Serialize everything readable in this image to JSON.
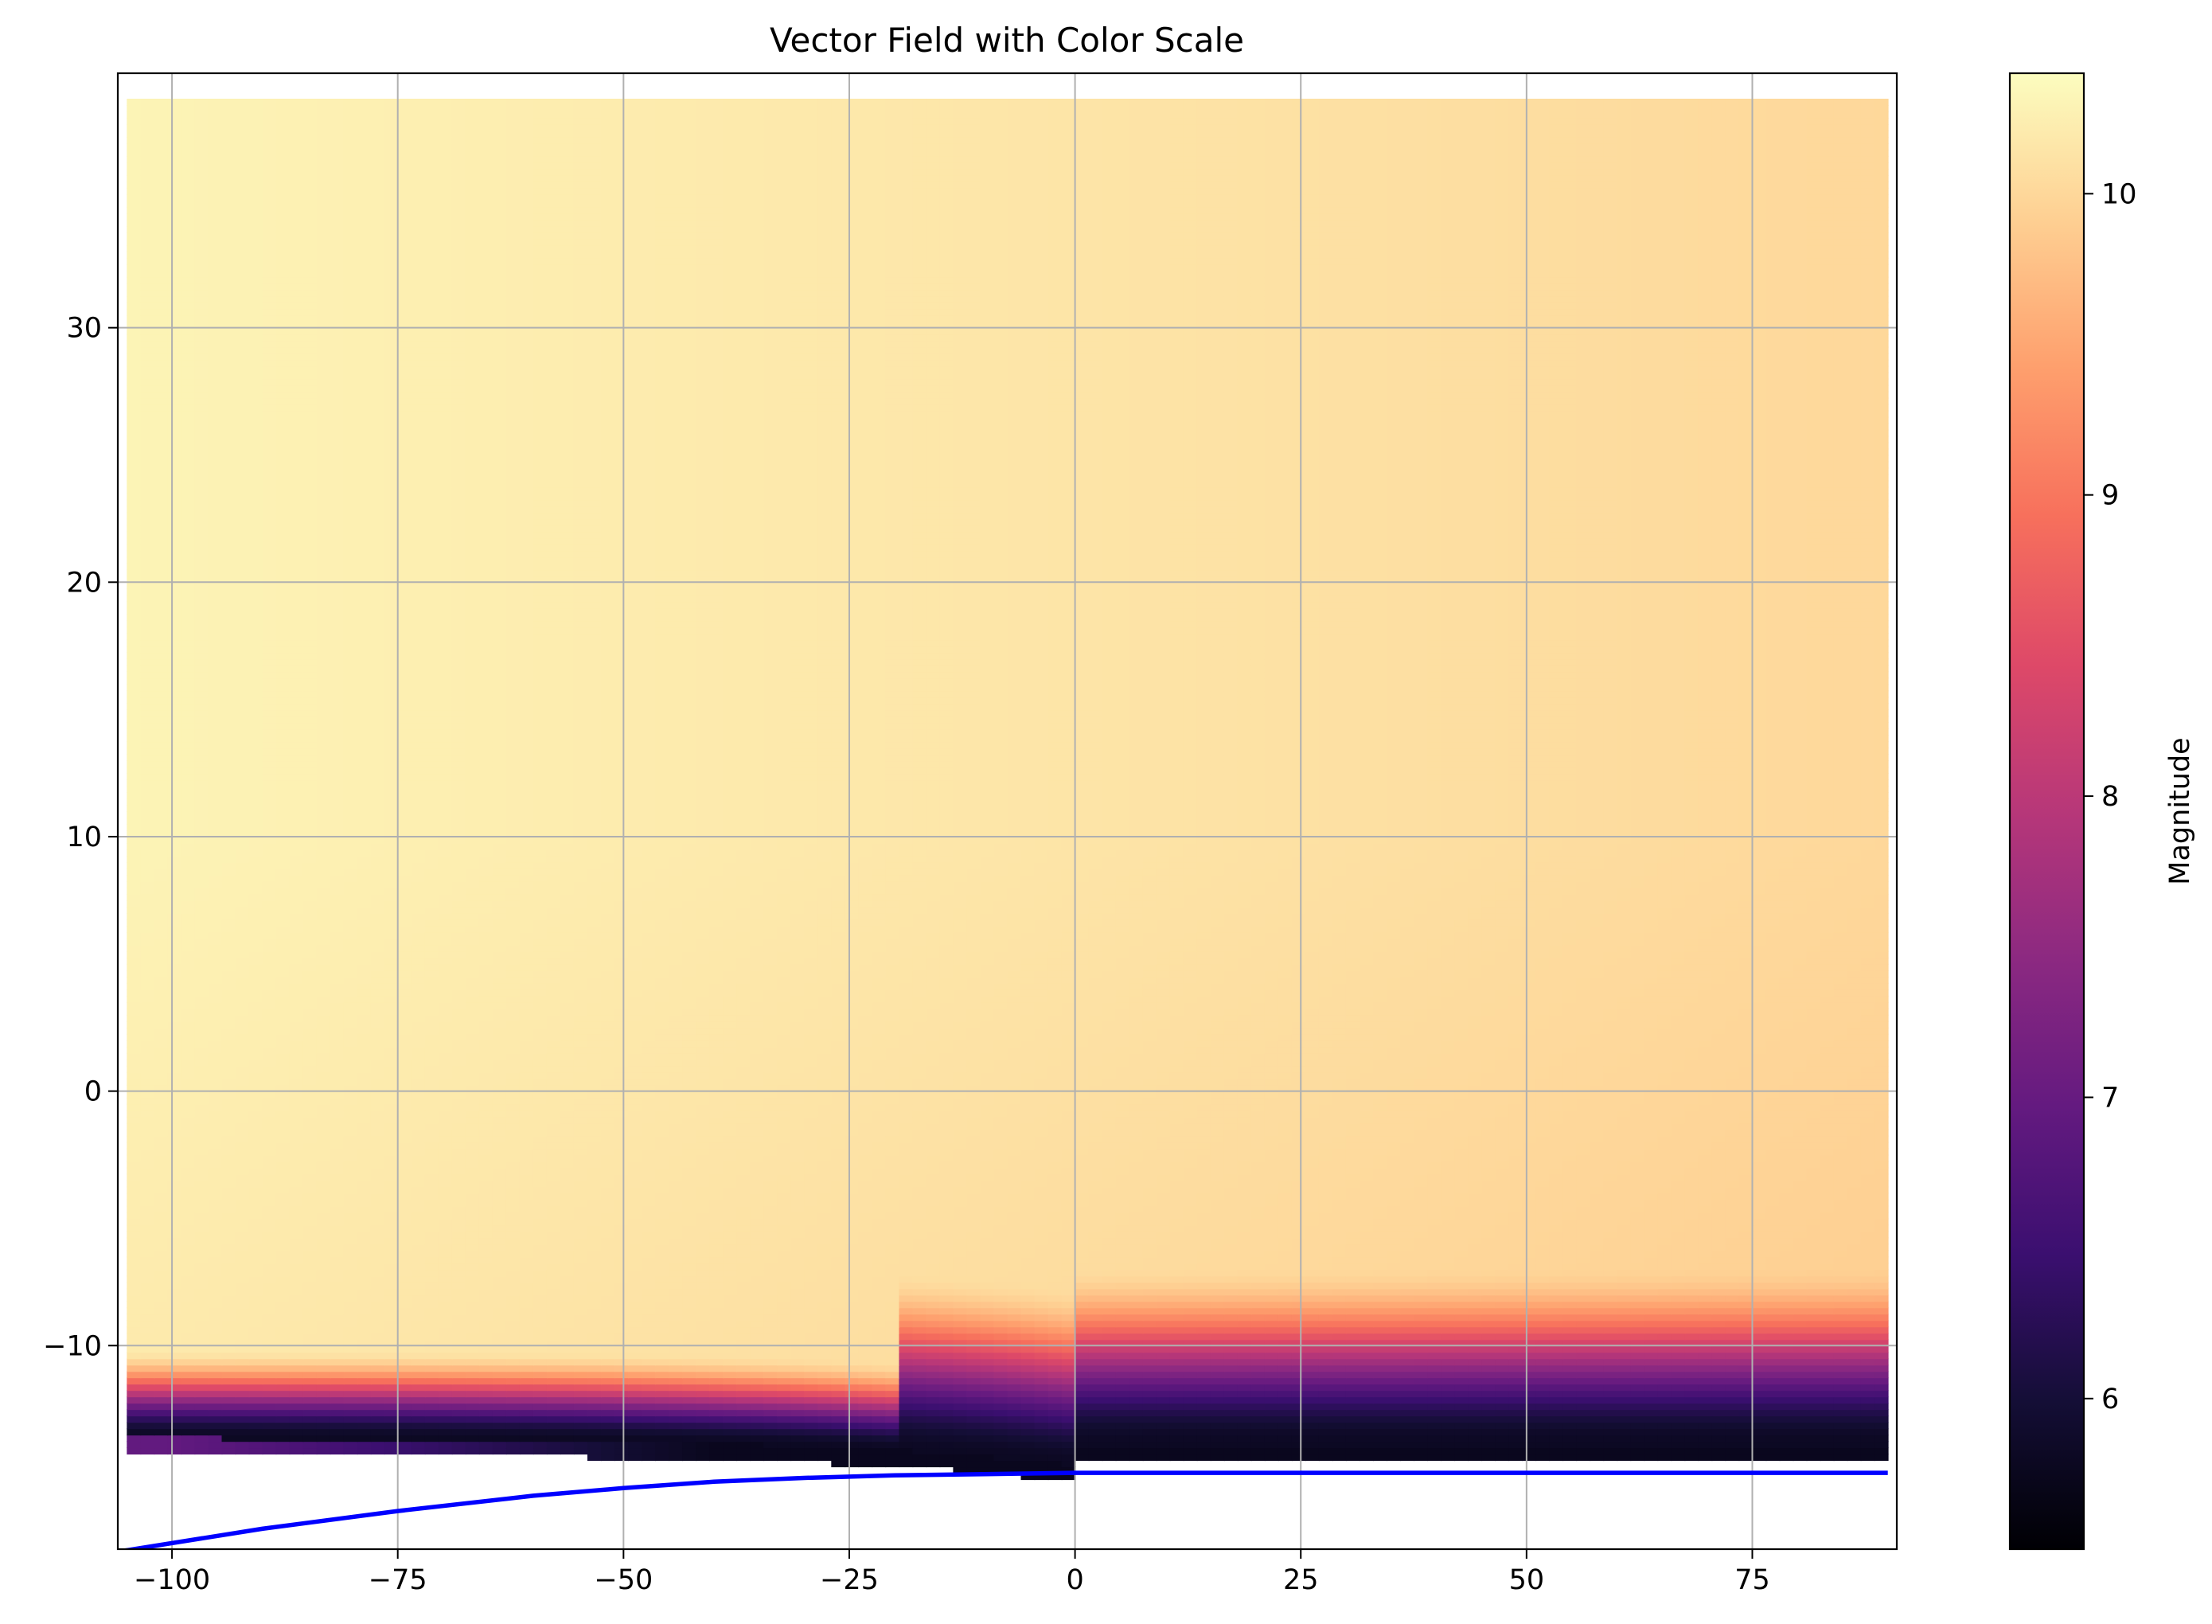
{
  "chart_data": {
    "type": "heatmap",
    "title": "Vector Field with Color Scale",
    "xlabel": "",
    "ylabel": "",
    "xlim": [
      -106,
      91
    ],
    "ylim": [
      -18,
      40
    ],
    "x_ticks": [
      -100,
      -75,
      -50,
      -25,
      0,
      25,
      50,
      75
    ],
    "x_tick_labels": [
      "−100",
      "−75",
      "−50",
      "−25",
      "0",
      "25",
      "50",
      "75"
    ],
    "y_ticks": [
      -10,
      0,
      10,
      20,
      30
    ],
    "y_tick_labels": [
      "−10",
      "0",
      "10",
      "20",
      "30"
    ],
    "grid": true,
    "colormap": "magma",
    "colorbar": {
      "label": "Magnitude",
      "range": [
        5.5,
        10.4
      ],
      "ticks": [
        6,
        7,
        8,
        9,
        10
      ],
      "tick_labels": [
        "6",
        "7",
        "8",
        "9",
        "10"
      ]
    },
    "field": {
      "x_range": [
        -105,
        90
      ],
      "y_range": [
        -17,
        39
      ],
      "magnitude_upper_region": [
        10.0,
        10.3
      ]
    },
    "line": {
      "color": "#0000ff",
      "points": [
        [
          -106,
          -18.1
        ],
        [
          -90,
          -17.2
        ],
        [
          -75,
          -16.5
        ],
        [
          -60,
          -15.9
        ],
        [
          -50,
          -15.6
        ],
        [
          -40,
          -15.35
        ],
        [
          -30,
          -15.2
        ],
        [
          -20,
          -15.1
        ],
        [
          -10,
          -15.05
        ],
        [
          0,
          -15.0
        ],
        [
          25,
          -15.0
        ],
        [
          50,
          -15.0
        ],
        [
          75,
          -15.0
        ],
        [
          90,
          -15.0
        ]
      ]
    },
    "colors": {
      "grid": "#b0b0b0",
      "axes": "#000000",
      "background": "#ffffff"
    }
  }
}
